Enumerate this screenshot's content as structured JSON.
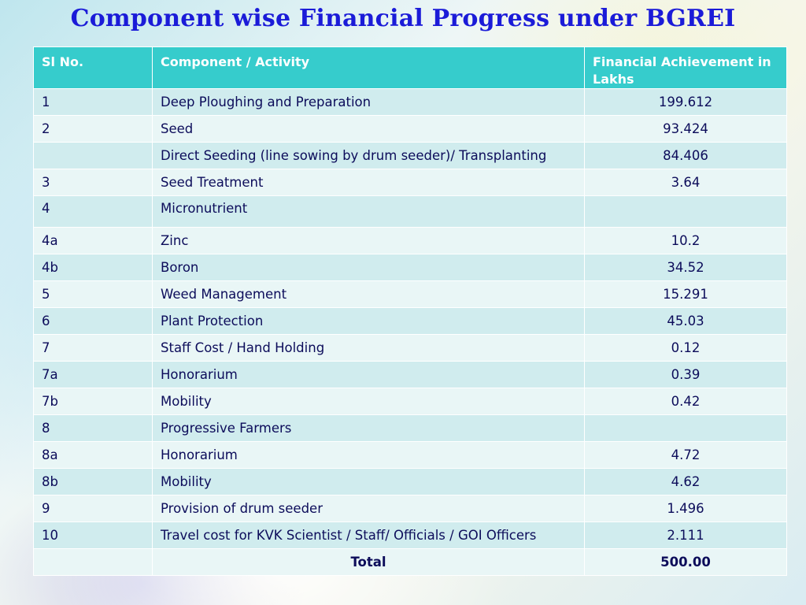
{
  "title": "Component wise Financial Progress under BGREI",
  "table": {
    "headers": [
      "Sl No.",
      "Component / Activity",
      "Financial Achievement in Lakhs"
    ],
    "rows": [
      {
        "sl": "1",
        "component": "Deep Ploughing and Preparation",
        "amount": "199.612"
      },
      {
        "sl": "2",
        "component": "Seed",
        "amount": "93.424"
      },
      {
        "sl": "",
        "component": "Direct Seeding (line sowing by drum seeder)/ Transplanting",
        "amount": "84.406"
      },
      {
        "sl": "3",
        "component": "Seed Treatment",
        "amount": "3.64"
      },
      {
        "sl": "4",
        "component": "Micronutrient",
        "amount": ""
      },
      {
        "sl": "4a",
        "component": "Zinc",
        "amount": "10.2"
      },
      {
        "sl": "4b",
        "component": "Boron",
        "amount": "34.52"
      },
      {
        "sl": "5",
        "component": "Weed Management",
        "amount": "15.291"
      },
      {
        "sl": "6",
        "component": "Plant Protection",
        "amount": "45.03"
      },
      {
        "sl": "7",
        "component": "Staff Cost / Hand Holding",
        "amount": "0.12"
      },
      {
        "sl": "7a",
        "component": "Honorarium",
        "amount": "0.39"
      },
      {
        "sl": "7b",
        "component": "Mobility",
        "amount": "0.42"
      },
      {
        "sl": "8",
        "component": "Progressive Farmers",
        "amount": ""
      },
      {
        "sl": "8a",
        "component": "Honorarium",
        "amount": "4.72"
      },
      {
        "sl": "8b",
        "component": "Mobility",
        "amount": "4.62"
      },
      {
        "sl": "9",
        "component": "Provision of drum seeder",
        "amount": "1.496"
      },
      {
        "sl": "10",
        "component": "Travel cost for KVK Scientist / Staff/ Officials / GOI Officers",
        "amount": "2.111"
      }
    ],
    "total": {
      "sl": "",
      "label": "Total",
      "amount": "500.00"
    }
  }
}
